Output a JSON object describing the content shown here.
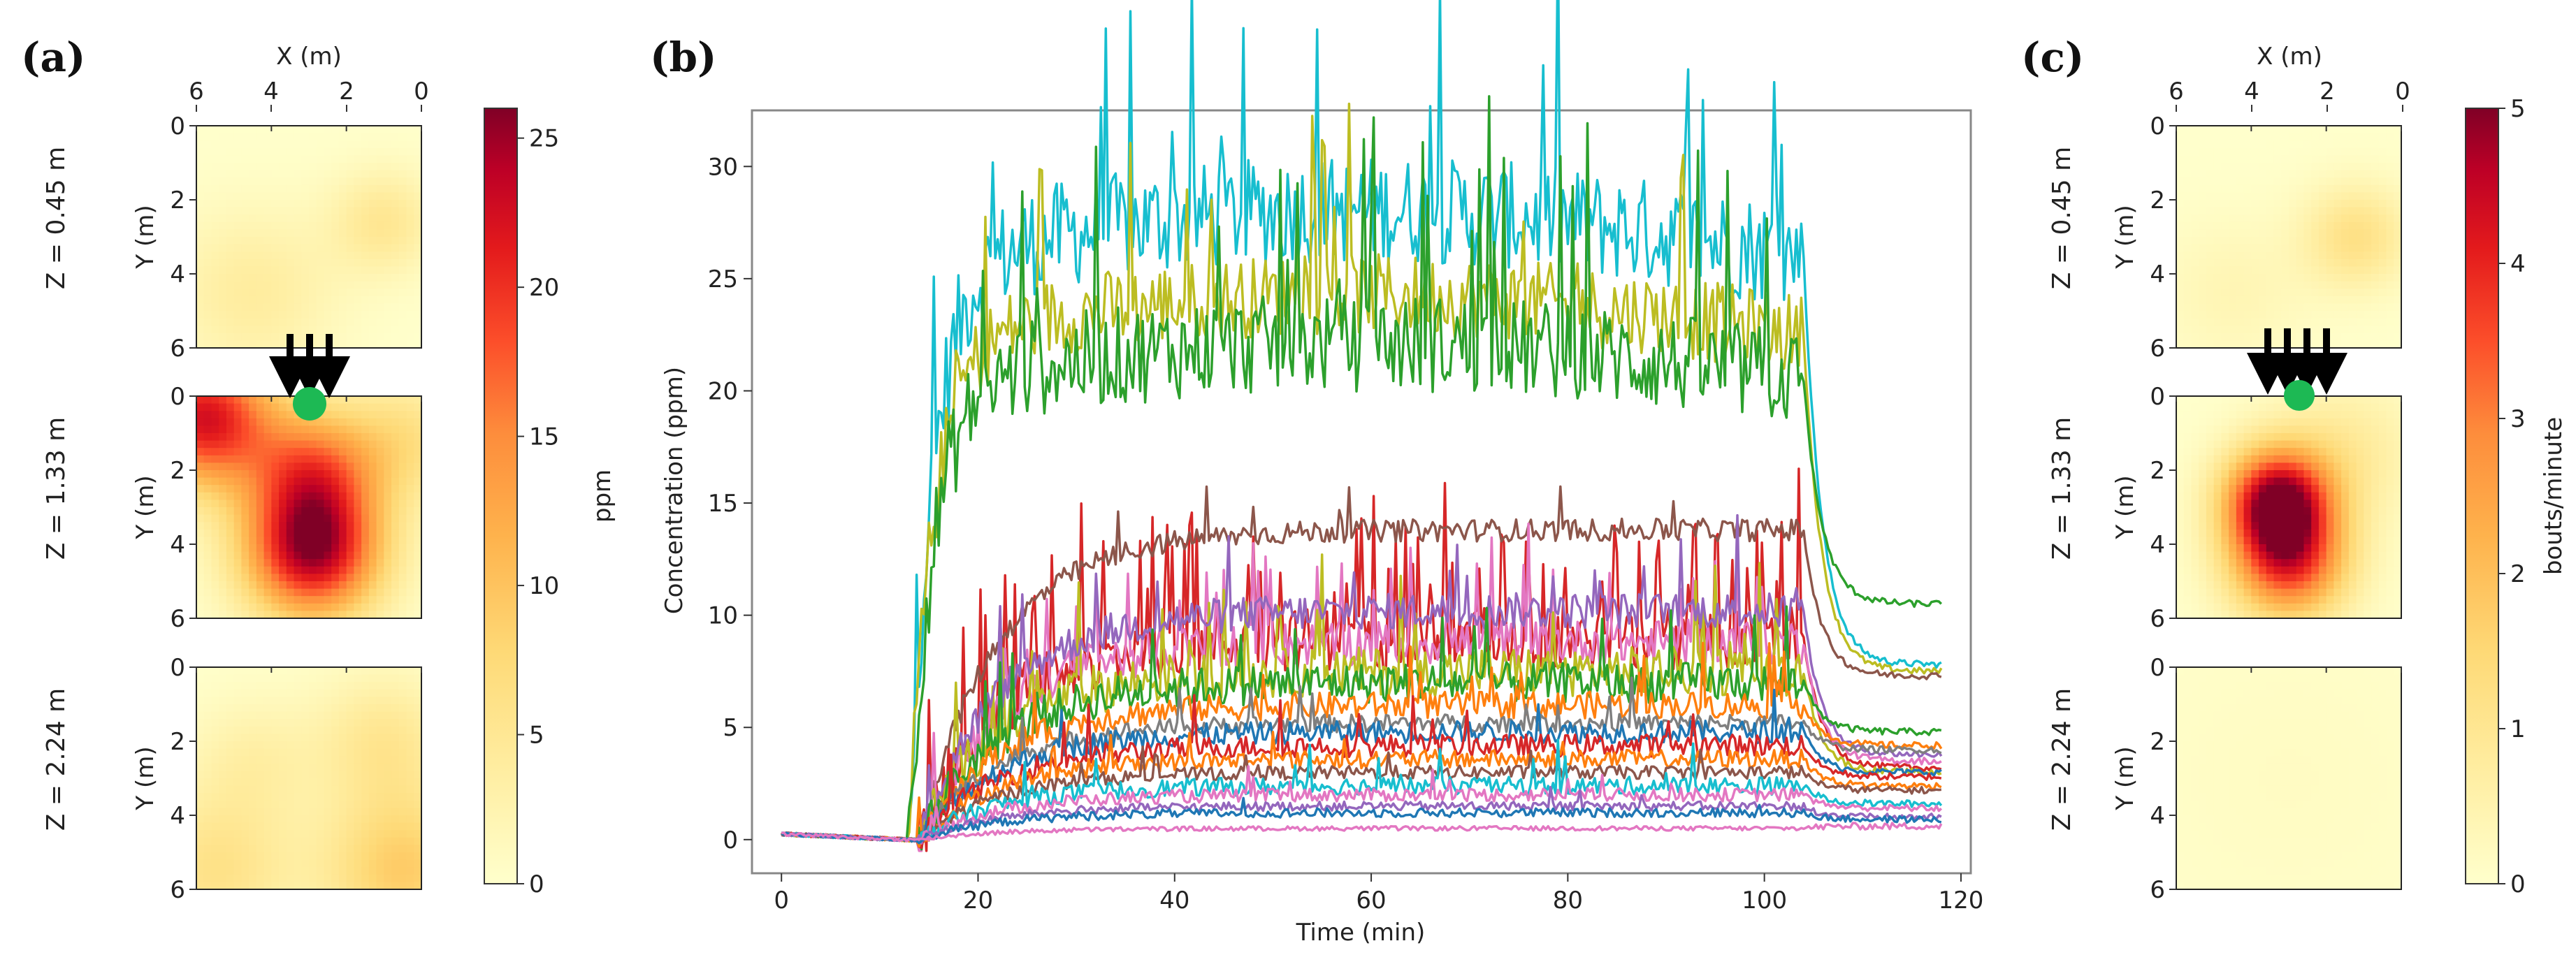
{
  "panel_labels": [
    "(a)",
    "(b)",
    "(c)"
  ],
  "chart_data": [
    {
      "panel": "(a)",
      "type": "heatmap",
      "title": "",
      "xlabel": "X (m)",
      "ylabel": "Y (m)",
      "x_ticks": [
        "6",
        "4",
        "2",
        "0"
      ],
      "y_ticks": [
        "0",
        "2",
        "4",
        "6"
      ],
      "subplots": [
        {
          "label": "Z = 0.45 m",
          "sources": [
            {
              "x": 4.5,
              "y": 4.5,
              "v": 4,
              "s": 1.6
            },
            {
              "x": 1.0,
              "y": 2.6,
              "v": 5,
              "s": 1.0
            }
          ]
        },
        {
          "label": "Z = 1.33 m",
          "sources": [
            {
              "x": 2.9,
              "y": 4.2,
              "v": 24,
              "s": 1.3
            },
            {
              "x": 5.8,
              "y": 0.6,
              "v": 22,
              "s": 1.3
            },
            {
              "x": 2.9,
              "y": 2.0,
              "v": 14,
              "s": 1.2
            },
            {
              "x": 0.4,
              "y": 1.2,
              "v": 6,
              "s": 1.2
            }
          ]
        },
        {
          "label": "Z = 2.24 m",
          "sources": [
            {
              "x": 0.5,
              "y": 5.5,
              "v": 9,
              "s": 1.5
            },
            {
              "x": 5.5,
              "y": 5.5,
              "v": 6,
              "s": 1.5
            },
            {
              "x": 1.0,
              "y": 2.0,
              "v": 5,
              "s": 1.3
            },
            {
              "x": 4.5,
              "y": 2.5,
              "v": 3,
              "s": 1.2
            }
          ]
        }
      ],
      "source_marker": {
        "x": 2.9,
        "y": 0.1,
        "color": "#1db954"
      },
      "colorbar": {
        "label": "ppm",
        "ticks": [
          "0",
          "5",
          "10",
          "15",
          "20",
          "25"
        ],
        "min": 0,
        "max": 26
      }
    },
    {
      "panel": "(b)",
      "type": "line",
      "title": "",
      "xlabel": "Time (min)",
      "ylabel": "Concentration (ppm)",
      "xlim": [
        -3,
        121
      ],
      "ylim": [
        -1.5,
        32.5
      ],
      "x_ticks": [
        "0",
        "20",
        "40",
        "60",
        "80",
        "100",
        "120"
      ],
      "y_ticks": [
        "0",
        "5",
        "10",
        "15",
        "20",
        "25",
        "30"
      ],
      "series": [
        {
          "color": "#17becf",
          "start": 14,
          "plateau": 26.0,
          "final": 7.8,
          "noise": 2.4,
          "spike": 0.05
        },
        {
          "color": "#bcbd22",
          "start": 14,
          "plateau": 22.5,
          "final": 7.5,
          "noise": 1.8,
          "spike": 0.05
        },
        {
          "color": "#2ca02c",
          "start": 14,
          "plateau": 20.5,
          "final": 10.5,
          "noise": 2.2,
          "spike": 0.08
        },
        {
          "color": "#d62728",
          "start": 15,
          "plateau": 9.0,
          "final": 3.2,
          "noise": 1.4,
          "spike": 0.22
        },
        {
          "color": "#8c564b",
          "start": 15,
          "plateau": 13.8,
          "final": 7.3,
          "noise": 0.5,
          "spike": 0.02
        },
        {
          "color": "#e377c2",
          "start": 15,
          "plateau": 8.8,
          "final": 3.5,
          "noise": 1.0,
          "spike": 0.08
        },
        {
          "color": "#bcbd22",
          "start": 15,
          "plateau": 7.5,
          "final": 3.0,
          "noise": 1.1,
          "spike": 0.06
        },
        {
          "color": "#9467bd",
          "start": 15,
          "plateau": 10.2,
          "final": 3.8,
          "noise": 0.8,
          "spike": 0.04
        },
        {
          "color": "#2ca02c",
          "start": 15,
          "plateau": 7.0,
          "final": 4.8,
          "noise": 0.9,
          "spike": 0.05
        },
        {
          "color": "#ff7f0e",
          "start": 15,
          "plateau": 6.0,
          "final": 4.2,
          "noise": 0.6,
          "spike": 0.03
        },
        {
          "color": "#7f7f7f",
          "start": 15,
          "plateau": 5.2,
          "final": 4.0,
          "noise": 0.4,
          "spike": 0.02
        },
        {
          "color": "#1f77b4",
          "start": 15,
          "plateau": 4.8,
          "final": 3.0,
          "noise": 0.5,
          "spike": 0.03
        },
        {
          "color": "#d62728",
          "start": 15,
          "plateau": 4.2,
          "final": 2.8,
          "noise": 0.5,
          "spike": 0.04
        },
        {
          "color": "#ff7f0e",
          "start": 15,
          "plateau": 3.6,
          "final": 2.4,
          "noise": 0.4,
          "spike": 0.02
        },
        {
          "color": "#8c564b",
          "start": 15,
          "plateau": 3.0,
          "final": 2.2,
          "noise": 0.3,
          "spike": 0.02
        },
        {
          "color": "#17becf",
          "start": 15,
          "plateau": 2.4,
          "final": 1.6,
          "noise": 0.4,
          "spike": 0.03
        },
        {
          "color": "#e377c2",
          "start": 15,
          "plateau": 2.0,
          "final": 1.4,
          "noise": 0.3,
          "spike": 0.02
        },
        {
          "color": "#9467bd",
          "start": 15,
          "plateau": 1.5,
          "final": 1.0,
          "noise": 0.2,
          "spike": 0.01
        },
        {
          "color": "#1f77b4",
          "start": 15,
          "plateau": 1.2,
          "final": 0.9,
          "noise": 0.2,
          "spike": 0.01
        },
        {
          "color": "#e377c2",
          "start": 15,
          "plateau": 0.5,
          "final": 0.6,
          "noise": 0.1,
          "spike": 0.0
        }
      ]
    },
    {
      "panel": "(c)",
      "type": "heatmap",
      "title": "",
      "xlabel": "X (m)",
      "ylabel": "Y (m)",
      "x_ticks": [
        "6",
        "4",
        "2",
        "0"
      ],
      "y_ticks": [
        "0",
        "2",
        "4",
        "6"
      ],
      "subplots": [
        {
          "label": "Z = 0.45 m",
          "sources": [
            {
              "x": 1.2,
              "y": 3.0,
              "v": 1.2,
              "s": 1.0
            },
            {
              "x": 4.5,
              "y": 4.5,
              "v": 0.4,
              "s": 1.4
            }
          ]
        },
        {
          "label": "Z = 1.33 m",
          "sources": [
            {
              "x": 3.3,
              "y": 2.8,
              "v": 4.6,
              "s": 1.0
            },
            {
              "x": 3.0,
              "y": 4.5,
              "v": 3.6,
              "s": 1.1
            },
            {
              "x": 1.5,
              "y": 1.5,
              "v": 0.8,
              "s": 1.4
            }
          ]
        },
        {
          "label": "Z = 2.24 m",
          "sources": [
            {
              "x": 3.0,
              "y": 3.0,
              "v": 0.15,
              "s": 3.0
            }
          ]
        }
      ],
      "source_marker": {
        "x": 2.5,
        "y": 0.1,
        "color": "#1db954"
      },
      "colorbar": {
        "label": "bouts/minute",
        "ticks": [
          "0",
          "1",
          "2",
          "3",
          "4",
          "5"
        ],
        "min": 0,
        "max": 5
      }
    }
  ]
}
